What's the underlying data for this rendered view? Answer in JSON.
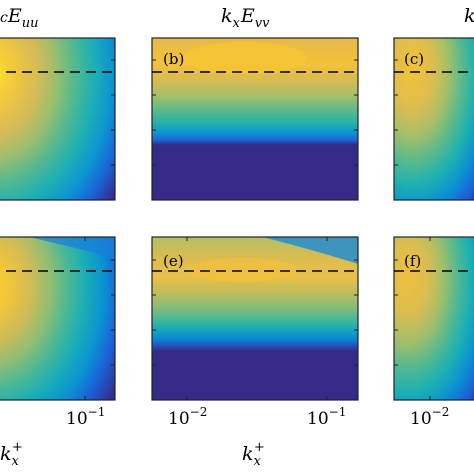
{
  "chart_data": {
    "type": "contour",
    "title": "",
    "column_titles": [
      {
        "base": "E",
        "sub": "uu",
        "prefix_visible": "c"
      },
      {
        "base": "k",
        "sub": "x",
        "base2": "E",
        "sub2": "vv"
      },
      {
        "base": "k",
        "sub": "",
        "visible": true
      }
    ],
    "panels": [
      {
        "id": "a",
        "label": "",
        "row": 0,
        "col": 0
      },
      {
        "id": "b",
        "label": "(b)",
        "row": 0,
        "col": 1
      },
      {
        "id": "c",
        "label": "(c)",
        "row": 0,
        "col": 2
      },
      {
        "id": "d",
        "label": "",
        "row": 1,
        "col": 0
      },
      {
        "id": "e",
        "label": "(e)",
        "row": 1,
        "col": 1
      },
      {
        "id": "f",
        "label": "(f)",
        "row": 1,
        "col": 2
      }
    ],
    "x_axis": {
      "label_base": "k",
      "label_sub": "x",
      "label_sup": "+",
      "scale": "log",
      "tick_labels_col0": [
        "10",
        "−1"
      ],
      "tick_labels_col1": [
        [
          "10",
          "−2"
        ],
        [
          "10",
          "−1"
        ]
      ],
      "tick_labels_col2": [
        [
          "10",
          "−2"
        ]
      ]
    },
    "reference_line": {
      "style": "dashed",
      "color": "#000000"
    },
    "colormap": [
      "#352a87",
      "#0f5cdd",
      "#1481d6",
      "#06a4ca",
      "#2eb7a4",
      "#87bf77",
      "#d1bb59",
      "#fec832",
      "#f9fb0e"
    ]
  }
}
